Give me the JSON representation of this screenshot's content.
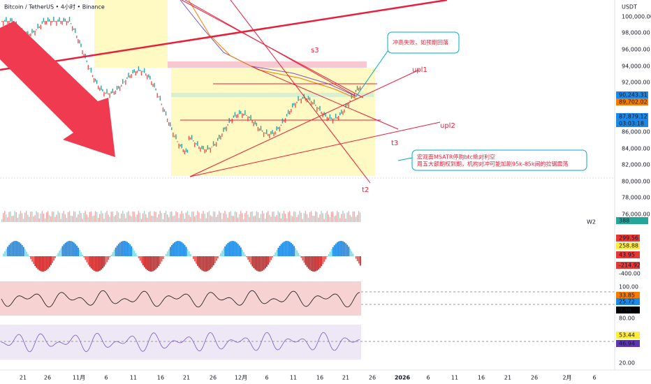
{
  "header": {
    "symbol": "Bitcoin / TetherUS • 4小时 • Binance",
    "currency": "USDT"
  },
  "price_axis": [
    "100,000.00",
    "98,000.00",
    "96,000.00",
    "94,000.00",
    "92,000.00",
    "86,000.00",
    "84,000.00",
    "82,000.00",
    "80,000.00",
    "78,000.00",
    "76,000.00"
  ],
  "price_badges": [
    "90,243.31",
    "89,702.02",
    "87,879.12",
    "03:03:18",
    "388"
  ],
  "volume_label": "W2",
  "indicator_axis": [
    "299.56",
    "258.88",
    "43.95",
    "-214.92",
    "-400.00",
    "100.00",
    "33.85",
    "25.72",
    "9.46",
    "80.00",
    "53.44",
    "46.94",
    "20.00"
  ],
  "time_axis": [
    "21",
    "26",
    "11月",
    "6",
    "11",
    "16",
    "21",
    "26",
    "12月",
    "6",
    "11",
    "16",
    "21",
    "26",
    "2026",
    "6",
    "11",
    "16",
    "21",
    "26",
    "2月",
    "6"
  ],
  "annotations": {
    "s3": "s3",
    "upl1": "upl1",
    "upl2": "upl2",
    "t3": "t3",
    "t2": "t2",
    "callout_top": "冲高失败，如预期回落",
    "callout_bottom": [
      "宏观面MSATR停购btc绝对利空",
      "周五大额期权到期，机构对冲可能加剧95k-85k间的拉锯震荡"
    ]
  }
}
